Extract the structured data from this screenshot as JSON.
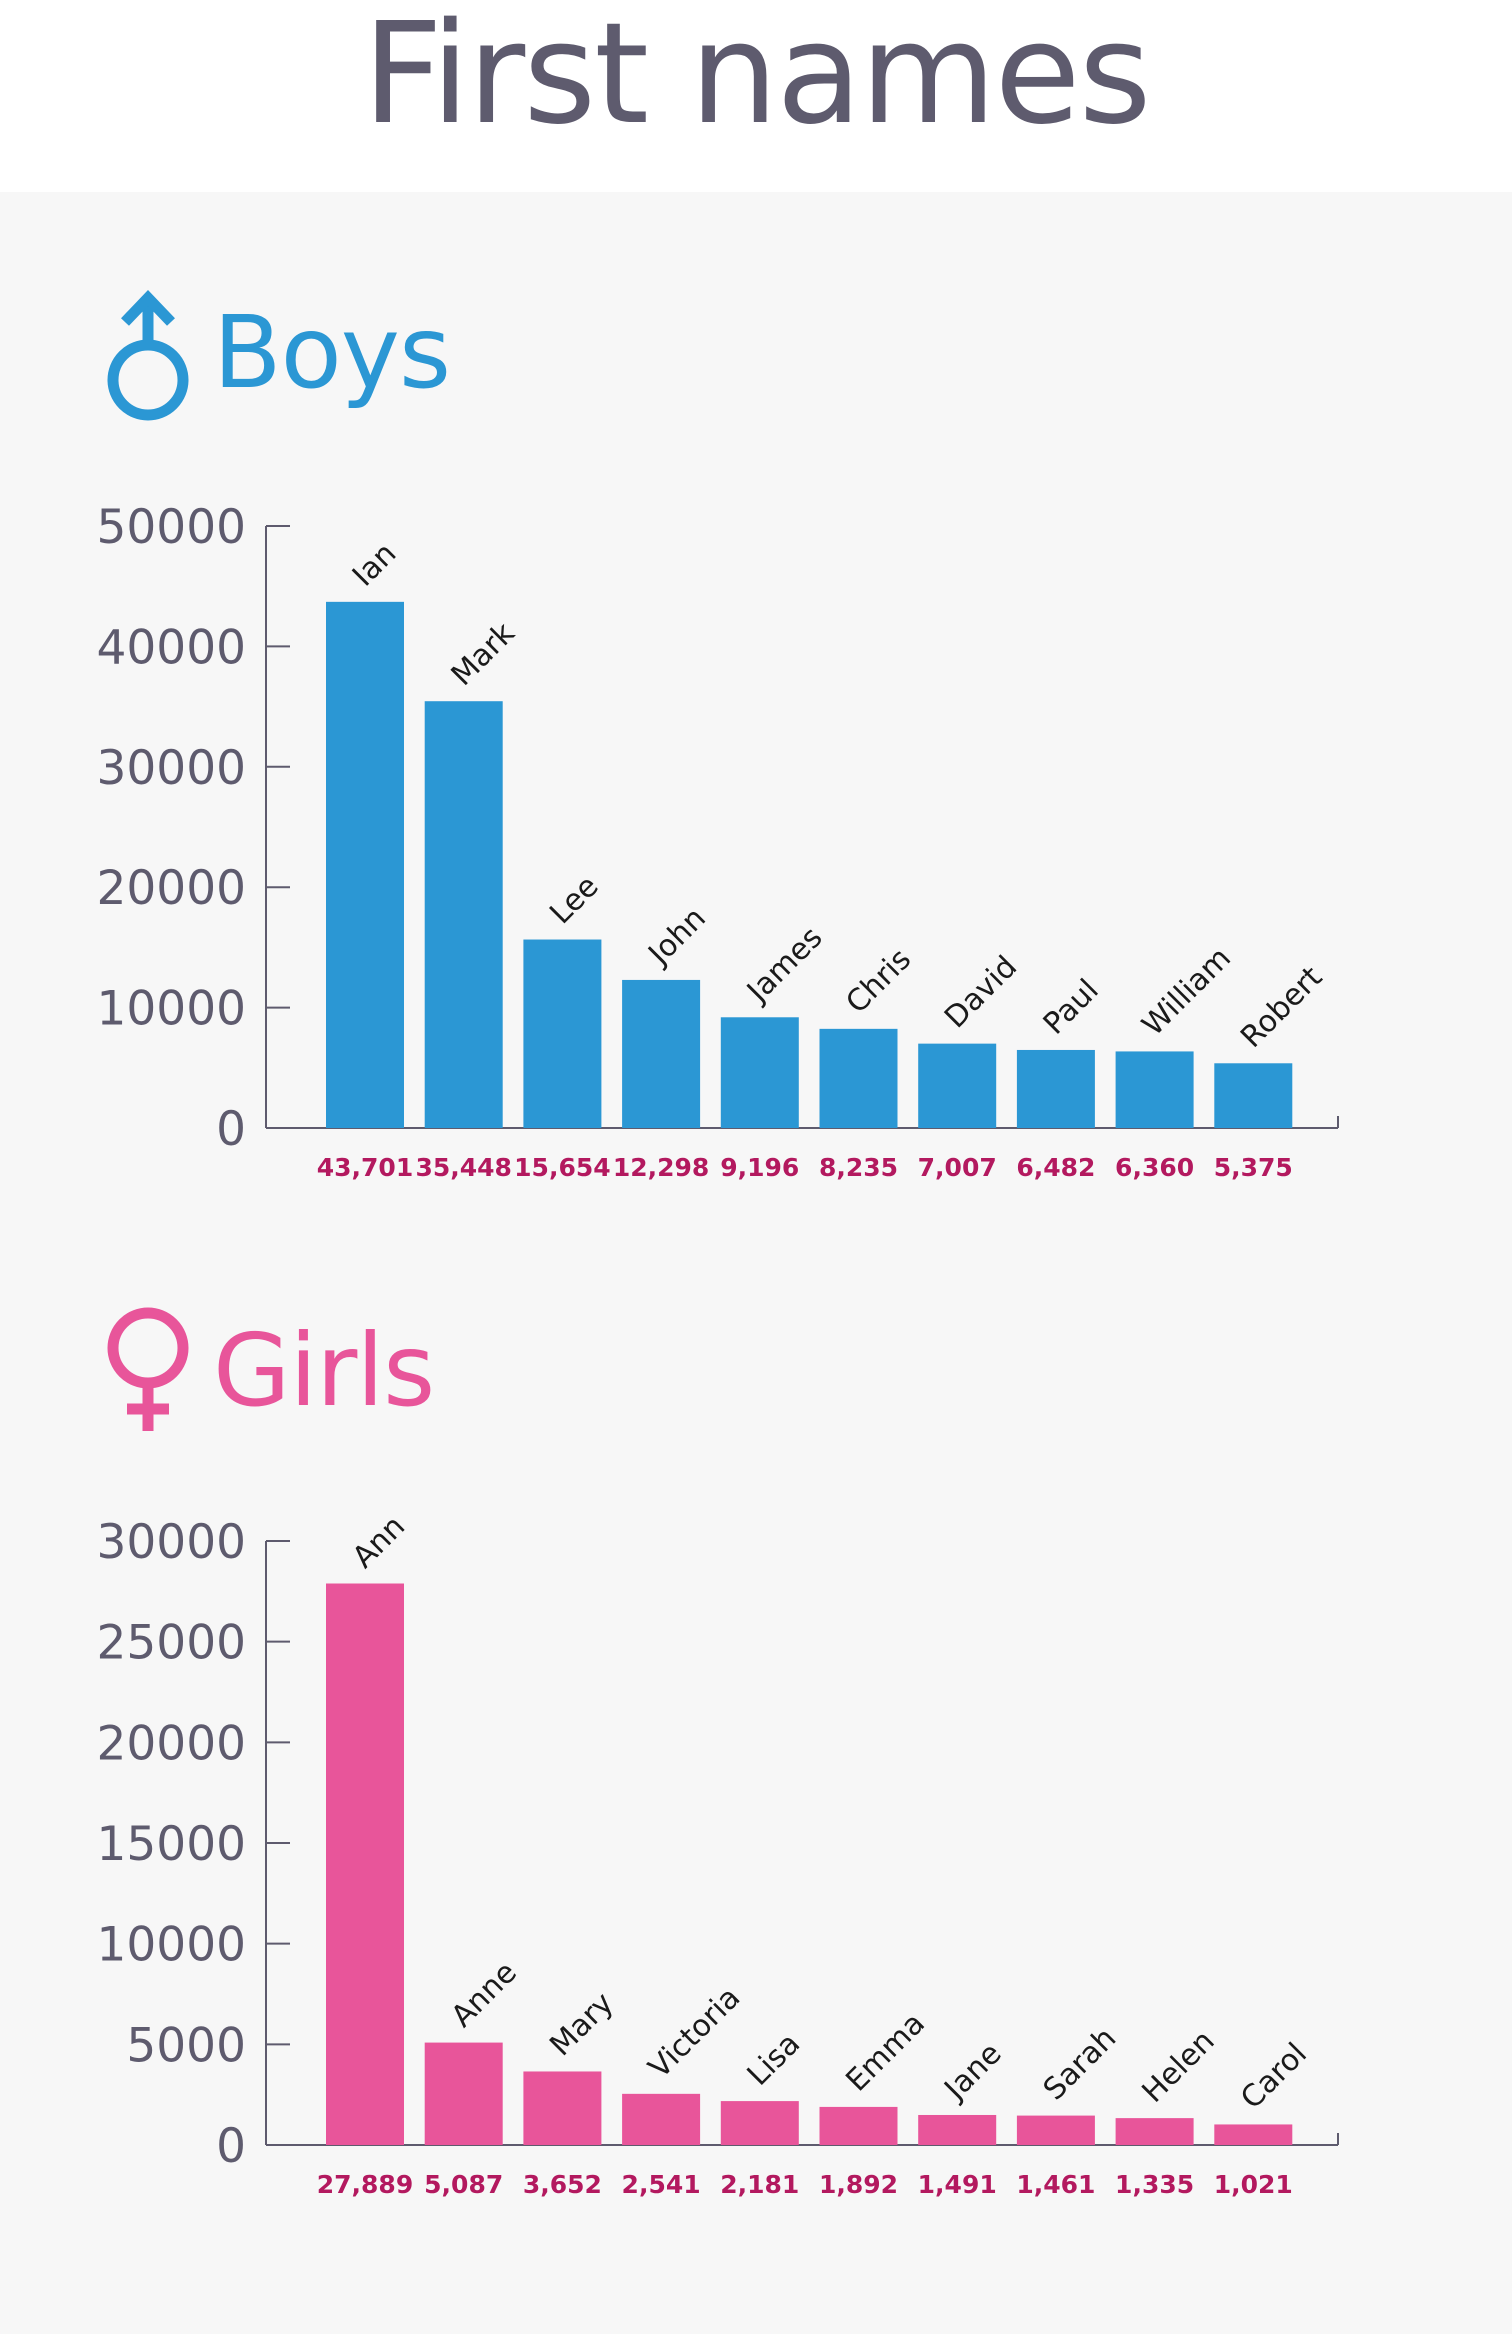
{
  "title": "First names",
  "boys": {
    "heading": "Boys",
    "icon": "male-symbol-icon",
    "color": "#2b97d4"
  },
  "girls": {
    "heading": "Girls",
    "icon": "female-symbol-icon",
    "color": "#e8559a"
  },
  "value_label_color": "#b3195f",
  "chart_data": [
    {
      "type": "bar",
      "categories": [
        "Ian",
        "Mark",
        "Lee",
        "John",
        "James",
        "Chris",
        "David",
        "Paul",
        "William",
        "Robert"
      ],
      "values": [
        43701,
        35448,
        15654,
        12298,
        9196,
        8235,
        7007,
        6482,
        6360,
        5375
      ],
      "value_labels": [
        "43,701",
        "35,448",
        "15,654",
        "12,298",
        "9,196",
        "8,235",
        "7,007",
        "6,482",
        "6,360",
        "5,375"
      ],
      "yticks": [
        "0",
        "10000",
        "20000",
        "30000",
        "40000",
        "50000"
      ],
      "ylim": [
        0,
        50000
      ],
      "color": "#2b97d4"
    },
    {
      "type": "bar",
      "categories": [
        "Ann",
        "Anne",
        "Mary",
        "Victoria",
        "Lisa",
        "Emma",
        "Jane",
        "Sarah",
        "Helen",
        "Carol"
      ],
      "values": [
        27889,
        5087,
        3652,
        2541,
        2181,
        1892,
        1491,
        1461,
        1335,
        1021
      ],
      "value_labels": [
        "27,889",
        "5,087",
        "3,652",
        "2,541",
        "2,181",
        "1,892",
        "1,491",
        "1,461",
        "1,335",
        "1,021"
      ],
      "yticks": [
        "0",
        "5000",
        "10000",
        "15000",
        "20000",
        "25000",
        "30000"
      ],
      "ylim": [
        0,
        30000
      ],
      "color": "#e8559a"
    }
  ]
}
